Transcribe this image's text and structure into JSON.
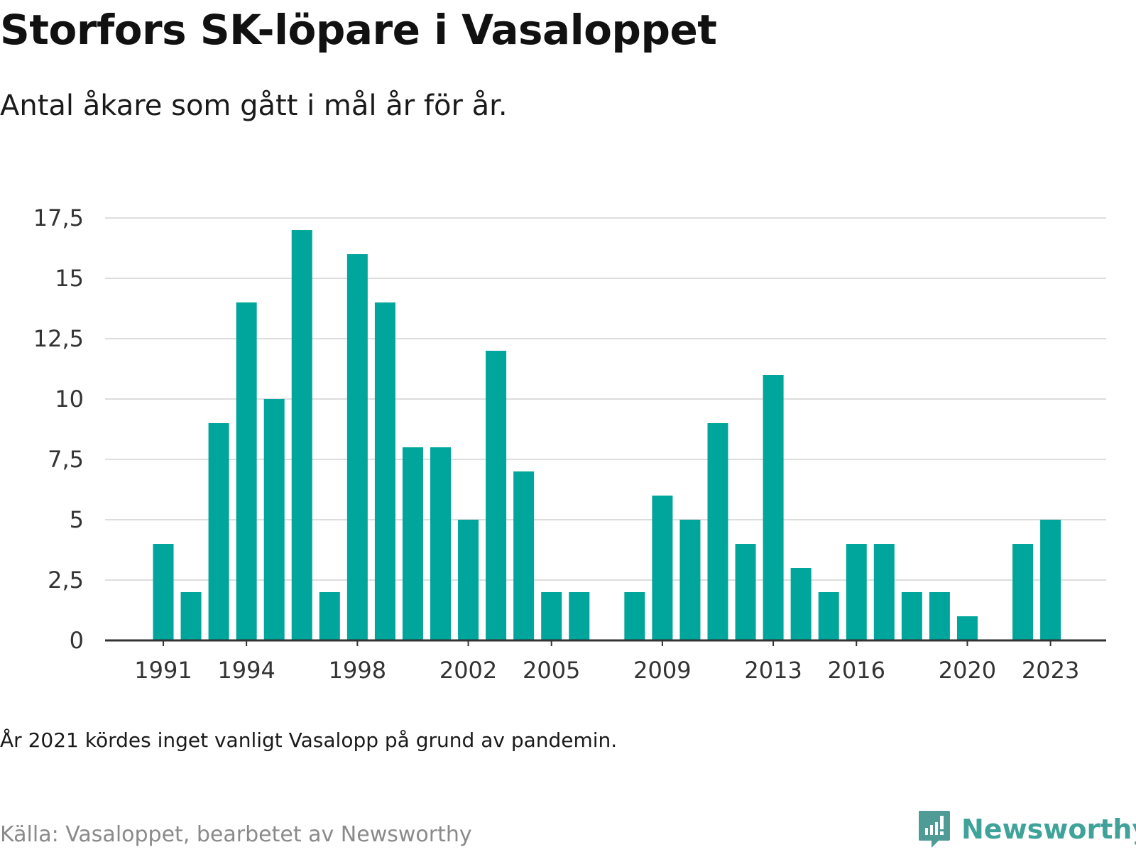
{
  "header": {
    "title": "Storfors SK-löpare i Vasaloppet",
    "subtitle": "Antal åkare som gått i mål år för år."
  },
  "footer": {
    "note": "År 2021 kördes inget vanligt Vasalopp på grund av pandemin.",
    "source": "Källa: Vasaloppet, bearbetet av Newsworthy",
    "brand": "Newsworthy",
    "brand_icon": "newsworthy-logo-icon"
  },
  "colors": {
    "bar": "#00a59b",
    "grid": "#dddddd",
    "axis": "#333333",
    "brand": "#3fa39a"
  },
  "chart_data": {
    "type": "bar",
    "categories": [
      "1991",
      "1992",
      "1993",
      "1994",
      "1995",
      "1996",
      "1997",
      "1998",
      "1999",
      "2000",
      "2001",
      "2002",
      "2003",
      "2004",
      "2005",
      "2006",
      "2007",
      "2008",
      "2009",
      "2010",
      "2011",
      "2012",
      "2013",
      "2014",
      "2015",
      "2016",
      "2017",
      "2018",
      "2019",
      "2020",
      "2021",
      "2022",
      "2023"
    ],
    "values": [
      4,
      2,
      9,
      14,
      10,
      17,
      2,
      16,
      14,
      8,
      8,
      5,
      12,
      7,
      2,
      2,
      0,
      2,
      6,
      5,
      9,
      4,
      11,
      3,
      2,
      4,
      4,
      2,
      2,
      1,
      0,
      4,
      5
    ],
    "title": "Storfors SK-löpare i Vasaloppet",
    "subtitle": "Antal åkare som gått i mål år för år.",
    "xlabel": "",
    "ylabel": "",
    "ylim": [
      0,
      17.5
    ],
    "y_ticks": [
      "0",
      "2,5",
      "5",
      "7,5",
      "10",
      "12,5",
      "15",
      "17,5"
    ],
    "x_tick_labels": [
      "1991",
      "1994",
      "1998",
      "2002",
      "2005",
      "2009",
      "2013",
      "2016",
      "2020",
      "2023"
    ],
    "grid": true,
    "legend": "none"
  }
}
